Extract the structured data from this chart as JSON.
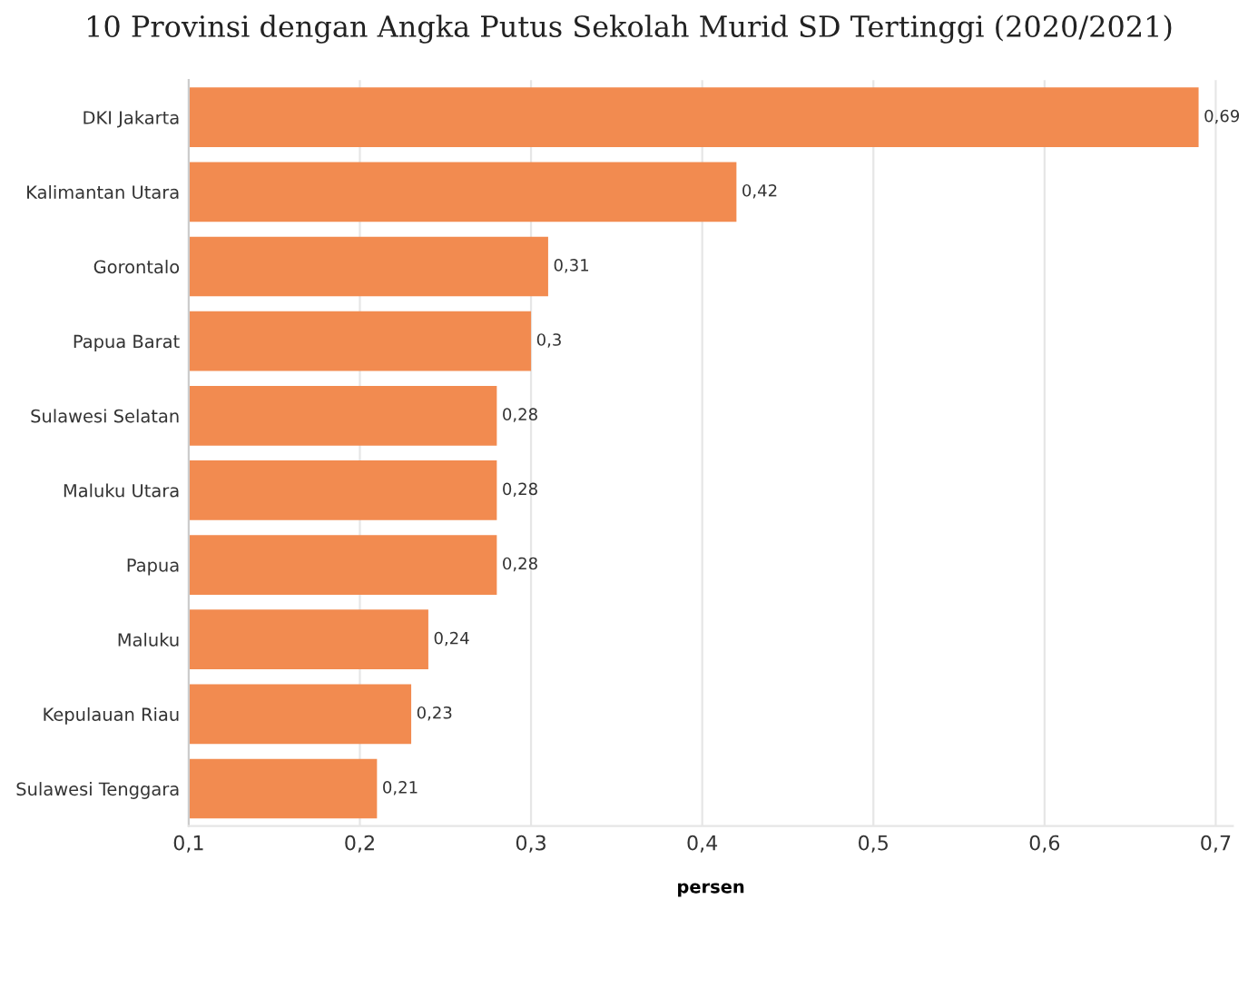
{
  "chart_data": {
    "type": "bar",
    "orientation": "horizontal",
    "title": "10 Provinsi dengan Angka Putus Sekolah Murid SD Tertinggi (2020/2021)",
    "xlabel": "persen",
    "categories": [
      "DKI Jakarta",
      "Kalimantan Utara",
      "Gorontalo",
      "Papua Barat",
      "Sulawesi Selatan",
      "Maluku Utara",
      "Papua",
      "Maluku",
      "Kepulauan Riau",
      "Sulawesi Tenggara"
    ],
    "values": [
      0.69,
      0.42,
      0.31,
      0.3,
      0.28,
      0.28,
      0.28,
      0.24,
      0.23,
      0.21
    ],
    "value_labels": [
      "0,69",
      "0,42",
      "0,31",
      "0,3",
      "0,28",
      "0,28",
      "0,28",
      "0,24",
      "0,23",
      "0,21"
    ],
    "color": "#f28b50",
    "xlim": [
      0.1,
      0.71
    ],
    "xticks": [
      {
        "value": 0.1,
        "label": "0,1"
      },
      {
        "value": 0.2,
        "label": "0,2"
      },
      {
        "value": 0.3,
        "label": "0,3"
      },
      {
        "value": 0.4,
        "label": "0,4"
      },
      {
        "value": 0.5,
        "label": "0,5"
      },
      {
        "value": 0.6,
        "label": "0,6"
      },
      {
        "value": 0.7,
        "label": "0,7"
      }
    ],
    "grid": "x"
  }
}
